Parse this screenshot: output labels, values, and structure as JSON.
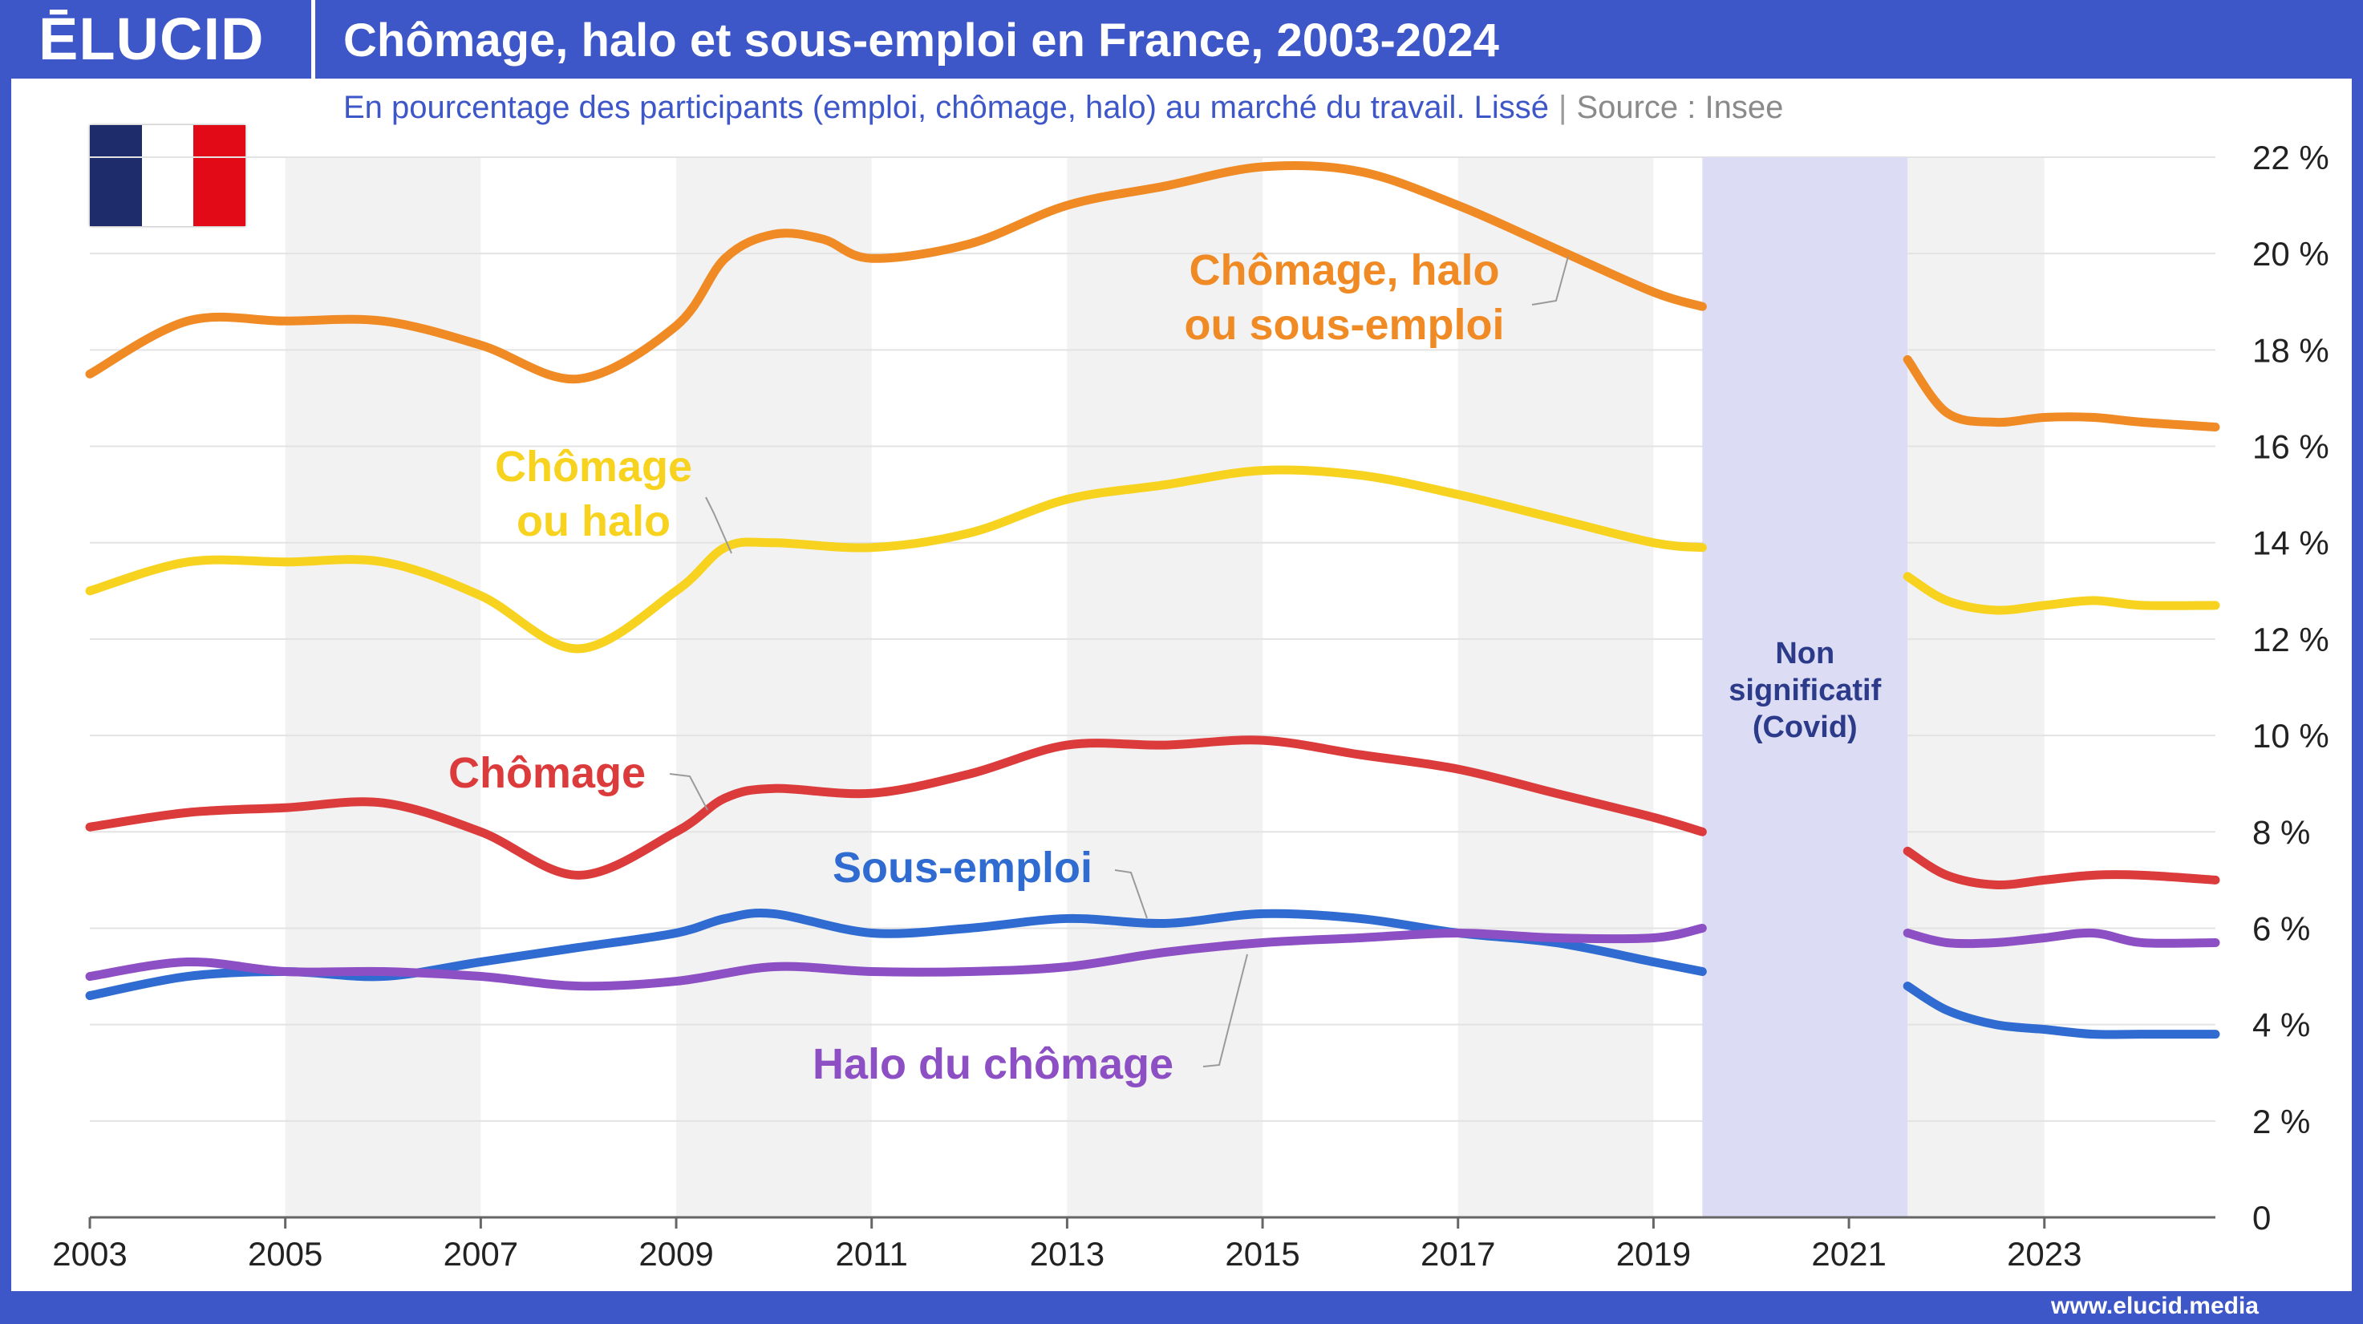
{
  "header": {
    "logo": "ĒLUCID",
    "title": "Chômage, halo et sous-emploi en France, 2003-2024"
  },
  "subtitle": {
    "text": "En pourcentage des participants (emploi, chômage, halo) au marché du travail. Lissé",
    "separator": "|",
    "source": "Source : Insee"
  },
  "footer": {
    "url": "www.elucid.media"
  },
  "colors": {
    "brand": "#3d56c8",
    "orange": "#f08a24",
    "yellow": "#f7d31f",
    "red": "#dc3b3b",
    "blue": "#2f6bd1",
    "purple": "#8d4fc4",
    "covid_band": "#dcdcf5"
  },
  "chart_data": {
    "type": "line",
    "x_ticks": [
      "2003",
      "2005",
      "2007",
      "2009",
      "2011",
      "2013",
      "2015",
      "2017",
      "2019",
      "2021",
      "2023"
    ],
    "y_ticks": [
      "0",
      "2 %",
      "4 %",
      "6 %",
      "8 %",
      "10 %",
      "12 %",
      "14 %",
      "16 %",
      "18 %",
      "20 %",
      "22 %"
    ],
    "xlim": [
      2003,
      2024.75
    ],
    "ylim": [
      0,
      22
    ],
    "covid_band": {
      "from": 2019.5,
      "to": 2021.6,
      "label": [
        "Non",
        "significatif",
        "(Covid)"
      ]
    },
    "series": [
      {
        "name": "Chômage, halo ou sous-emploi",
        "color": "#f08a24",
        "label_lines": [
          "Chômage, halo",
          "ou sous-emploi"
        ],
        "segments": [
          [
            [
              2003,
              17.5
            ],
            [
              2004,
              18.6
            ],
            [
              2005,
              18.6
            ],
            [
              2006,
              18.6
            ],
            [
              2007,
              18.1
            ],
            [
              2008,
              17.4
            ],
            [
              2009,
              18.5
            ],
            [
              2009.5,
              19.9
            ],
            [
              2010,
              20.4
            ],
            [
              2010.5,
              20.3
            ],
            [
              2011,
              19.9
            ],
            [
              2012,
              20.2
            ],
            [
              2013,
              21.0
            ],
            [
              2014,
              21.4
            ],
            [
              2015,
              21.8
            ],
            [
              2016,
              21.7
            ],
            [
              2017,
              21.0
            ],
            [
              2018,
              20.1
            ],
            [
              2019,
              19.2
            ],
            [
              2019.5,
              18.9
            ]
          ],
          [
            [
              2021.6,
              17.8
            ],
            [
              2022,
              16.7
            ],
            [
              2022.5,
              16.5
            ],
            [
              2023,
              16.6
            ],
            [
              2023.5,
              16.6
            ],
            [
              2024,
              16.5
            ],
            [
              2024.75,
              16.4
            ]
          ]
        ]
      },
      {
        "name": "Chômage ou halo",
        "color": "#f7d31f",
        "label_lines": [
          "Chômage",
          "ou halo"
        ],
        "segments": [
          [
            [
              2003,
              13.0
            ],
            [
              2004,
              13.6
            ],
            [
              2005,
              13.6
            ],
            [
              2006,
              13.6
            ],
            [
              2007,
              12.9
            ],
            [
              2008,
              11.8
            ],
            [
              2009,
              13.0
            ],
            [
              2009.5,
              13.9
            ],
            [
              2010,
              14.0
            ],
            [
              2011,
              13.9
            ],
            [
              2012,
              14.2
            ],
            [
              2013,
              14.9
            ],
            [
              2014,
              15.2
            ],
            [
              2015,
              15.5
            ],
            [
              2016,
              15.4
            ],
            [
              2017,
              15.0
            ],
            [
              2018,
              14.5
            ],
            [
              2019,
              14.0
            ],
            [
              2019.5,
              13.9
            ]
          ],
          [
            [
              2021.6,
              13.3
            ],
            [
              2022,
              12.8
            ],
            [
              2022.5,
              12.6
            ],
            [
              2023,
              12.7
            ],
            [
              2023.5,
              12.8
            ],
            [
              2024,
              12.7
            ],
            [
              2024.75,
              12.7
            ]
          ]
        ]
      },
      {
        "name": "Chômage",
        "color": "#dc3b3b",
        "label_lines": [
          "Chômage"
        ],
        "segments": [
          [
            [
              2003,
              8.1
            ],
            [
              2004,
              8.4
            ],
            [
              2005,
              8.5
            ],
            [
              2006,
              8.6
            ],
            [
              2007,
              8.0
            ],
            [
              2008,
              7.1
            ],
            [
              2009,
              8.0
            ],
            [
              2009.5,
              8.7
            ],
            [
              2010,
              8.9
            ],
            [
              2011,
              8.8
            ],
            [
              2012,
              9.2
            ],
            [
              2013,
              9.8
            ],
            [
              2014,
              9.8
            ],
            [
              2015,
              9.9
            ],
            [
              2016,
              9.6
            ],
            [
              2017,
              9.3
            ],
            [
              2018,
              8.8
            ],
            [
              2019,
              8.3
            ],
            [
              2019.5,
              8.0
            ]
          ],
          [
            [
              2021.6,
              7.6
            ],
            [
              2022,
              7.1
            ],
            [
              2022.5,
              6.9
            ],
            [
              2023,
              7.0
            ],
            [
              2023.5,
              7.1
            ],
            [
              2024,
              7.1
            ],
            [
              2024.75,
              7.0
            ]
          ]
        ]
      },
      {
        "name": "Sous-emploi",
        "color": "#2f6bd1",
        "label_lines": [
          "Sous-emploi"
        ],
        "segments": [
          [
            [
              2003,
              4.6
            ],
            [
              2004,
              5.0
            ],
            [
              2005,
              5.1
            ],
            [
              2006,
              5.0
            ],
            [
              2007,
              5.3
            ],
            [
              2008,
              5.6
            ],
            [
              2009,
              5.9
            ],
            [
              2009.5,
              6.2
            ],
            [
              2010,
              6.3
            ],
            [
              2011,
              5.9
            ],
            [
              2012,
              6.0
            ],
            [
              2013,
              6.2
            ],
            [
              2014,
              6.1
            ],
            [
              2015,
              6.3
            ],
            [
              2016,
              6.2
            ],
            [
              2017,
              5.9
            ],
            [
              2018,
              5.7
            ],
            [
              2019,
              5.3
            ],
            [
              2019.5,
              5.1
            ]
          ],
          [
            [
              2021.6,
              4.8
            ],
            [
              2022,
              4.3
            ],
            [
              2022.5,
              4.0
            ],
            [
              2023,
              3.9
            ],
            [
              2023.5,
              3.8
            ],
            [
              2024,
              3.8
            ],
            [
              2024.75,
              3.8
            ]
          ]
        ]
      },
      {
        "name": "Halo du chômage",
        "color": "#8d4fc4",
        "label_lines": [
          "Halo du chômage"
        ],
        "segments": [
          [
            [
              2003,
              5.0
            ],
            [
              2004,
              5.3
            ],
            [
              2005,
              5.1
            ],
            [
              2006,
              5.1
            ],
            [
              2007,
              5.0
            ],
            [
              2008,
              4.8
            ],
            [
              2009,
              4.9
            ],
            [
              2010,
              5.2
            ],
            [
              2011,
              5.1
            ],
            [
              2012,
              5.1
            ],
            [
              2013,
              5.2
            ],
            [
              2014,
              5.5
            ],
            [
              2015,
              5.7
            ],
            [
              2016,
              5.8
            ],
            [
              2017,
              5.9
            ],
            [
              2018,
              5.8
            ],
            [
              2019,
              5.8
            ],
            [
              2019.5,
              6.0
            ]
          ],
          [
            [
              2021.6,
              5.9
            ],
            [
              2022,
              5.7
            ],
            [
              2022.5,
              5.7
            ],
            [
              2023,
              5.8
            ],
            [
              2023.5,
              5.9
            ],
            [
              2024,
              5.7
            ],
            [
              2024.75,
              5.7
            ]
          ]
        ]
      }
    ]
  }
}
